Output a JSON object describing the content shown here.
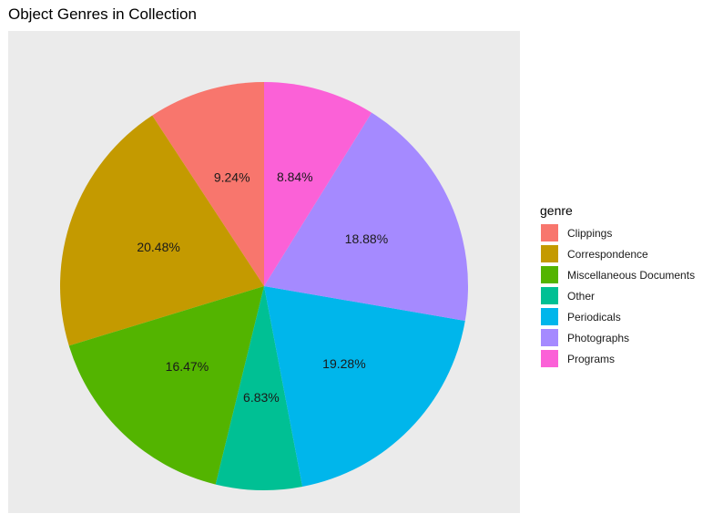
{
  "chart_data": {
    "type": "pie",
    "title": "Object Genres in Collection",
    "legend_title": "genre",
    "legend_position": "right",
    "start": "top",
    "direction": "counterclockwise",
    "slices": [
      {
        "name": "Clippings",
        "value": 9.24,
        "label": "9.24%",
        "color": "#F8766D"
      },
      {
        "name": "Correspondence",
        "value": 20.48,
        "label": "20.48%",
        "color": "#C49A00"
      },
      {
        "name": "Miscellaneous Documents",
        "value": 16.47,
        "label": "16.47%",
        "color": "#53B400"
      },
      {
        "name": "Other",
        "value": 6.83,
        "label": "6.83%",
        "color": "#00C094"
      },
      {
        "name": "Periodicals",
        "value": 19.28,
        "label": "19.28%",
        "color": "#00B6EB"
      },
      {
        "name": "Photographs",
        "value": 18.88,
        "label": "18.88%",
        "color": "#A58AFF"
      },
      {
        "name": "Programs",
        "value": 8.84,
        "label": "8.84%",
        "color": "#FB61D7"
      }
    ],
    "background_color": "#EBEBEB"
  }
}
